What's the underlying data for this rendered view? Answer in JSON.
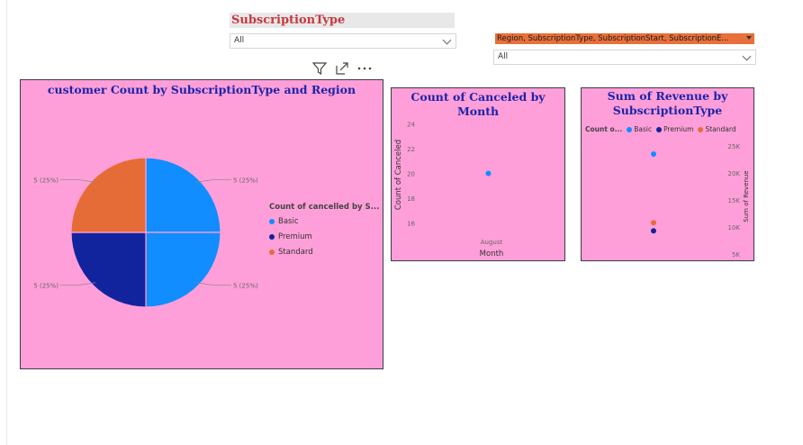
{
  "slicers": {
    "subscription_type": {
      "title": "SubscriptionType",
      "value": "All"
    },
    "region_filter": {
      "title": "Region, SubscriptionType, SubscriptionStart, SubscriptionE...",
      "value": "All"
    }
  },
  "toolbar": {
    "icons": [
      "filter-icon",
      "focus-mode-icon",
      "more-options-icon"
    ]
  },
  "colors": {
    "basic": "#118dff",
    "premium": "#12239e",
    "standard": "#e66c37",
    "panel": "#ff9fd9"
  },
  "pie": {
    "title": "customer Count by SubscriptionType and Region",
    "legend_title": "Count of cancelled by S...",
    "legend": [
      "Basic",
      "Premium",
      "Standard"
    ],
    "labels": [
      "5 (25%)",
      "5 (25%)",
      "5 (25%)",
      "5 (25%)"
    ]
  },
  "canceled": {
    "title": "Count of Canceled by Month",
    "ylabel": "Count of Canceled",
    "xlabel": "Month",
    "xtick": "August",
    "yticks": [
      "24",
      "22",
      "20",
      "18",
      "16"
    ]
  },
  "revenue": {
    "title_line1": "Sum of Revenue by",
    "title_line2": "SubscriptionType",
    "legend_title": "Count o...",
    "legend": [
      "Basic",
      "Premium",
      "Standard"
    ],
    "ylabel": "Sum of Revenue",
    "yticks": [
      "25K",
      "20K",
      "15K",
      "10K",
      "5K"
    ]
  },
  "chart_data": [
    {
      "type": "pie",
      "title": "customer Count by SubscriptionType and Region",
      "legend_title": "Count of cancelled by S...",
      "slices": [
        {
          "name": "Basic",
          "value": 5,
          "label": "5 (25%)"
        },
        {
          "name": "Basic",
          "value": 5,
          "label": "5 (25%)"
        },
        {
          "name": "Premium",
          "value": 5,
          "label": "5 (25%)"
        },
        {
          "name": "Standard",
          "value": 5,
          "label": "5 (25%)"
        }
      ],
      "legend_position": "right"
    },
    {
      "type": "scatter",
      "title": "Count of Canceled by Month",
      "xlabel": "Month",
      "ylabel": "Count of Canceled",
      "categories": [
        "August"
      ],
      "values": [
        20
      ],
      "ylim": [
        15,
        25
      ],
      "yticks": [
        16,
        18,
        20,
        22,
        24
      ]
    },
    {
      "type": "scatter",
      "title": "Sum of Revenue by SubscriptionType",
      "ylabel": "Sum of Revenue",
      "ylim": [
        4000,
        27000
      ],
      "yticks": [
        5000,
        10000,
        15000,
        20000,
        25000
      ],
      "series": [
        {
          "name": "Basic",
          "values": [
            23500
          ]
        },
        {
          "name": "Premium",
          "values": [
            9300
          ]
        },
        {
          "name": "Standard",
          "values": [
            10800
          ]
        }
      ],
      "legend_position": "top"
    }
  ]
}
